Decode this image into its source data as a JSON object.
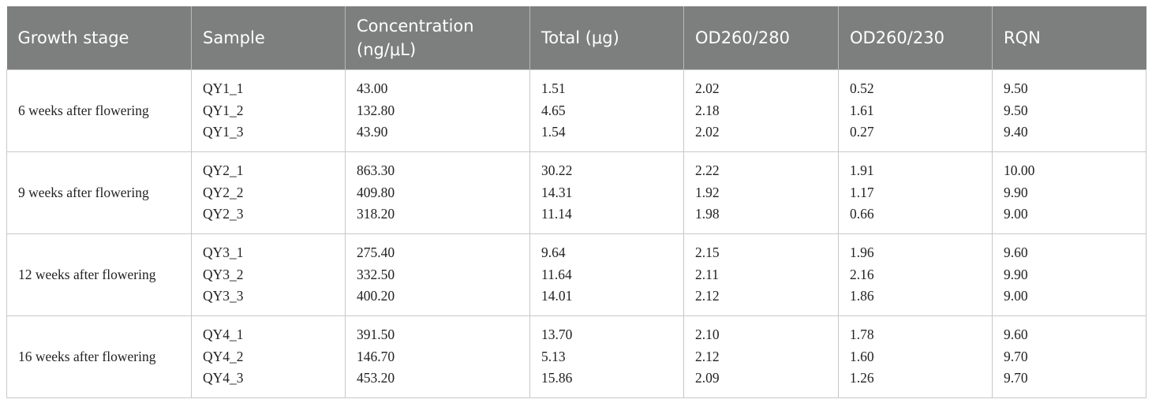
{
  "header": {
    "columns": [
      "Growth stage",
      "Sample",
      "Concentration (ng/μL)",
      "Total (μg)",
      "OD260/280",
      "OD260/230",
      "RQN"
    ]
  },
  "groups": [
    {
      "stage": "6 weeks after flowering",
      "rows": [
        [
          "QY1_1",
          "43.00",
          "1.51",
          "2.02",
          "0.52",
          "9.50"
        ],
        [
          "QY1_2",
          "132.80",
          "4.65",
          "2.18",
          "1.61",
          "9.50"
        ],
        [
          "QY1_3",
          "43.90",
          "1.54",
          "2.02",
          "0.27",
          "9.40"
        ]
      ]
    },
    {
      "stage": "9 weeks after flowering",
      "rows": [
        [
          "QY2_1",
          "863.30",
          "30.22",
          "2.22",
          "1.91",
          "10.00"
        ],
        [
          "QY2_2",
          "409.80",
          "14.31",
          "1.92",
          "1.17",
          "9.90"
        ],
        [
          "QY2_3",
          "318.20",
          "11.14",
          "1.98",
          "0.66",
          "9.00"
        ]
      ]
    },
    {
      "stage": "12 weeks after flowering",
      "rows": [
        [
          "QY3_1",
          "275.40",
          "9.64",
          "2.15",
          "1.96",
          "9.60"
        ],
        [
          "QY3_2",
          "332.50",
          "11.64",
          "2.11",
          "2.16",
          "9.90"
        ],
        [
          "QY3_3",
          "400.20",
          "14.01",
          "2.12",
          "1.86",
          "9.00"
        ]
      ]
    },
    {
      "stage": "16 weeks after flowering",
      "rows": [
        [
          "QY4_1",
          "391.50",
          "13.70",
          "2.10",
          "1.78",
          "9.60"
        ],
        [
          "QY4_2",
          "146.70",
          "5.13",
          "2.12",
          "1.60",
          "9.70"
        ],
        [
          "QY4_3",
          "453.20",
          "15.86",
          "2.09",
          "1.26",
          "9.70"
        ]
      ]
    }
  ]
}
